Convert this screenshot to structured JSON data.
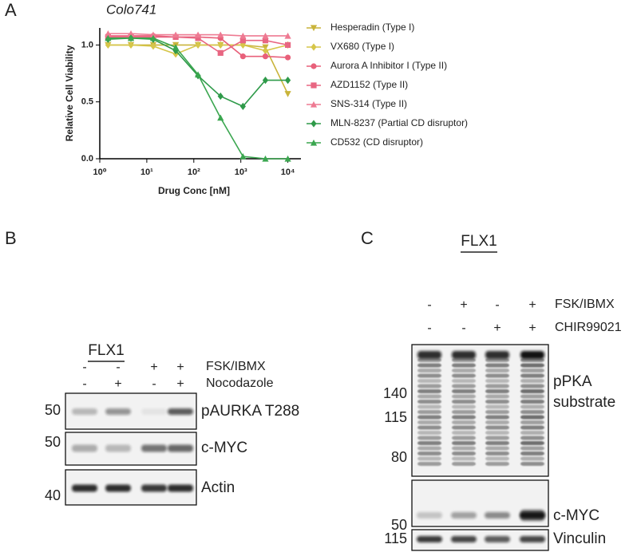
{
  "panel_labels": [
    "A",
    "B",
    "C"
  ],
  "chart_data": {
    "type": "line",
    "title": "Colo741",
    "x_label": "Drug Conc [nM]",
    "y_label": "Relative Cell Viability",
    "x": [
      1.5,
      4.6,
      13.7,
      41.2,
      123,
      370,
      1111,
      3333,
      10000
    ],
    "x_log": true,
    "xlim": [
      1,
      19000
    ],
    "ylim": [
      0,
      1.15
    ],
    "xticks": [
      {
        "value": 1,
        "label": "10⁰"
      },
      {
        "value": 10,
        "label": "10¹"
      },
      {
        "value": 100,
        "label": "10²"
      },
      {
        "value": 1000,
        "label": "10³"
      },
      {
        "value": 10000,
        "label": "10⁴"
      }
    ],
    "yticks": [
      {
        "value": 0,
        "label": "0.0"
      },
      {
        "value": 0.5,
        "label": "0.5"
      },
      {
        "value": 1,
        "label": "1.0"
      }
    ],
    "series": [
      {
        "name": "Hesperadin (Type I)",
        "color": "#c9b43b",
        "marker": "triangle-down",
        "values": [
          1.0,
          1.0,
          1.0,
          1.0,
          1.0,
          1.0,
          1.0,
          0.98,
          0.57
        ]
      },
      {
        "name": "VX680 (Type I)",
        "color": "#d6c64a",
        "marker": "diamond",
        "values": [
          1.0,
          1.0,
          0.99,
          0.92,
          1.0,
          1.0,
          1.0,
          0.95,
          1.0
        ]
      },
      {
        "name": "Aurora A Inhibitor I (Type II)",
        "color": "#e8607a",
        "marker": "circle",
        "values": [
          1.08,
          1.08,
          1.08,
          1.07,
          1.07,
          1.06,
          0.9,
          0.9,
          0.89
        ]
      },
      {
        "name": "AZD1152 (Type II)",
        "color": "#e86682",
        "marker": "square",
        "values": [
          1.07,
          1.07,
          1.07,
          1.07,
          1.06,
          0.93,
          1.04,
          1.04,
          1.0
        ]
      },
      {
        "name": "SNS-314 (Type II)",
        "color": "#ee7a92",
        "marker": "triangle-up",
        "values": [
          1.1,
          1.1,
          1.09,
          1.09,
          1.09,
          1.09,
          1.08,
          1.08,
          1.08
        ]
      },
      {
        "name": "MLN-8237 (Partial CD disruptor)",
        "color": "#2e9a49",
        "marker": "diamond",
        "values": [
          1.05,
          1.06,
          1.05,
          0.95,
          0.73,
          0.55,
          0.46,
          0.69,
          0.69
        ]
      },
      {
        "name": "CD532 (CD disruptor)",
        "color": "#3aa64f",
        "marker": "triangle-up",
        "values": [
          1.06,
          1.06,
          1.06,
          0.98,
          0.74,
          0.36,
          0.02,
          0.0,
          0.0
        ]
      }
    ]
  },
  "blot_b": {
    "cell_line": "FLX1",
    "treatments": [
      {
        "name": "FSK/IBMX",
        "signs": [
          "-",
          "-",
          "+",
          "+"
        ]
      },
      {
        "name": "Nocodazole",
        "signs": [
          "-",
          "+",
          "-",
          "+"
        ]
      }
    ],
    "rows": [
      {
        "label": "pAURKA T288",
        "markers": [
          "50"
        ]
      },
      {
        "label": "c-MYC",
        "markers": [
          "50"
        ]
      },
      {
        "label": "Actin",
        "markers": [
          "40"
        ]
      }
    ]
  },
  "blot_c": {
    "cell_line": "FLX1",
    "treatments": [
      {
        "name": "FSK/IBMX",
        "signs": [
          "-",
          "+",
          "-",
          "+"
        ]
      },
      {
        "name": "CHIR99021",
        "signs": [
          "-",
          "-",
          "+",
          "+"
        ]
      }
    ],
    "rows": [
      {
        "label": "pPKA substrate",
        "markers": [
          "140",
          "115",
          "80"
        ]
      },
      {
        "label": "c-MYC",
        "markers": [
          "50"
        ]
      },
      {
        "label": "Vinculin",
        "markers": [
          "115"
        ]
      }
    ]
  }
}
